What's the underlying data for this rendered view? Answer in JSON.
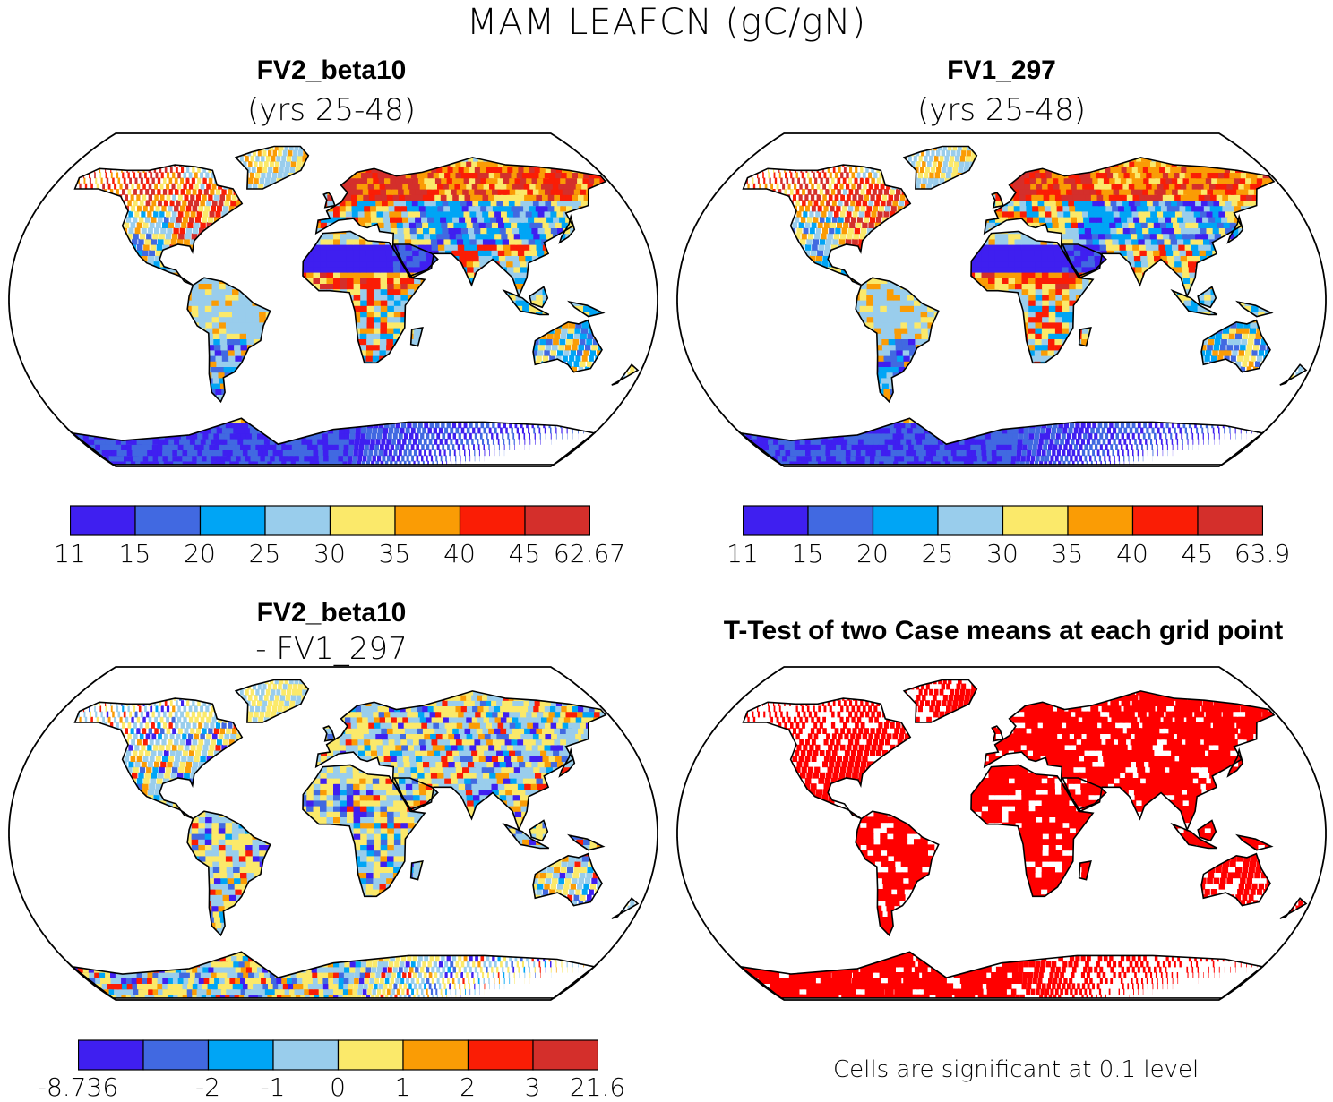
{
  "title": "MAM LEAFCN (gC/gN)",
  "panels": {
    "top_left": {
      "name": "FV2_beta10",
      "subtitle": "(yrs 25-48)"
    },
    "top_right": {
      "name": "FV1_297",
      "subtitle": "(yrs 25-48)"
    },
    "bottom_left": {
      "name": "FV2_beta10",
      "subtitle": "- FV1_297"
    },
    "bottom_right": {
      "name": "T-Test of two Case means at each grid point"
    }
  },
  "colorbars": {
    "top_left": {
      "labels": [
        "11",
        "15",
        "20",
        "25",
        "30",
        "35",
        "40",
        "45",
        "62.67"
      ]
    },
    "top_right": {
      "labels": [
        "11",
        "15",
        "20",
        "25",
        "30",
        "35",
        "40",
        "45",
        "63.9"
      ]
    },
    "bottom_left": {
      "labels": [
        "-8.736",
        "-2",
        "-1",
        "0",
        "1",
        "2",
        "3",
        "21.6"
      ]
    }
  },
  "colors": {
    "abs_scale": [
      "#3f1ff0",
      "#4169e1",
      "#00a5f5",
      "#99cdec",
      "#fbe96a",
      "#fa9c05",
      "#fa1d05",
      "#d42f2b"
    ],
    "diff_scale": [
      "#3f1ff0",
      "#4169e1",
      "#00a5f5",
      "#99cdec",
      "#fbe96a",
      "#fa9c05",
      "#fa1d05",
      "#d42f2b"
    ],
    "significant": "#ff0000"
  },
  "note": "Cells are significant at 0.1 level"
}
